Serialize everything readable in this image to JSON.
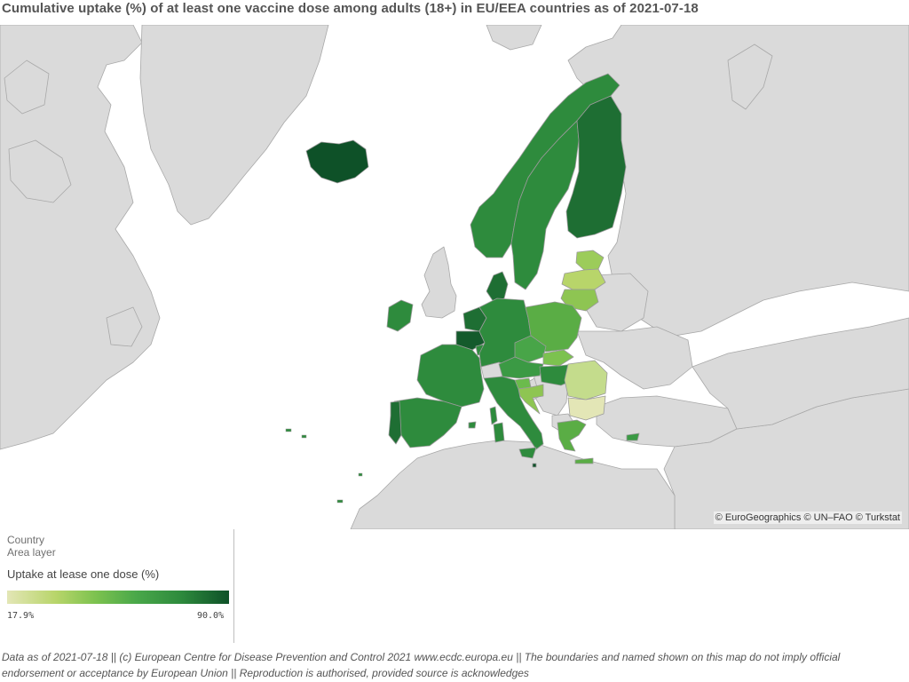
{
  "title": "Cumulative uptake (%) of at least one vaccine dose among adults (18+) in EU/EEA countries as of 2021-07-18",
  "map": {
    "attribution": "© EuroGeographics © UN–FAO © Turkstat",
    "background_color": "#ffffff",
    "non_data_country_color": "#dadada",
    "border_color": "#a8a8a8"
  },
  "legend": {
    "layer_name": "Country",
    "layer_type": "Area layer",
    "measure": "Uptake at lease one dose (%)",
    "min_label": "17.9%",
    "max_label": "90.0%",
    "min_value": 17.9,
    "max_value": 90.0,
    "color_low": "#e3e6b6",
    "color_high": "#0e5128"
  },
  "footnote": "Data as of 2021-07-18 || (c) European Centre for Disease Prevention and Control 2021 www.ecdc.europa.eu || The boundaries and named shown on this map do not imply official endorsement or acceptance by European Union || Reproduction is authorised, provided source is acknowledges"
}
